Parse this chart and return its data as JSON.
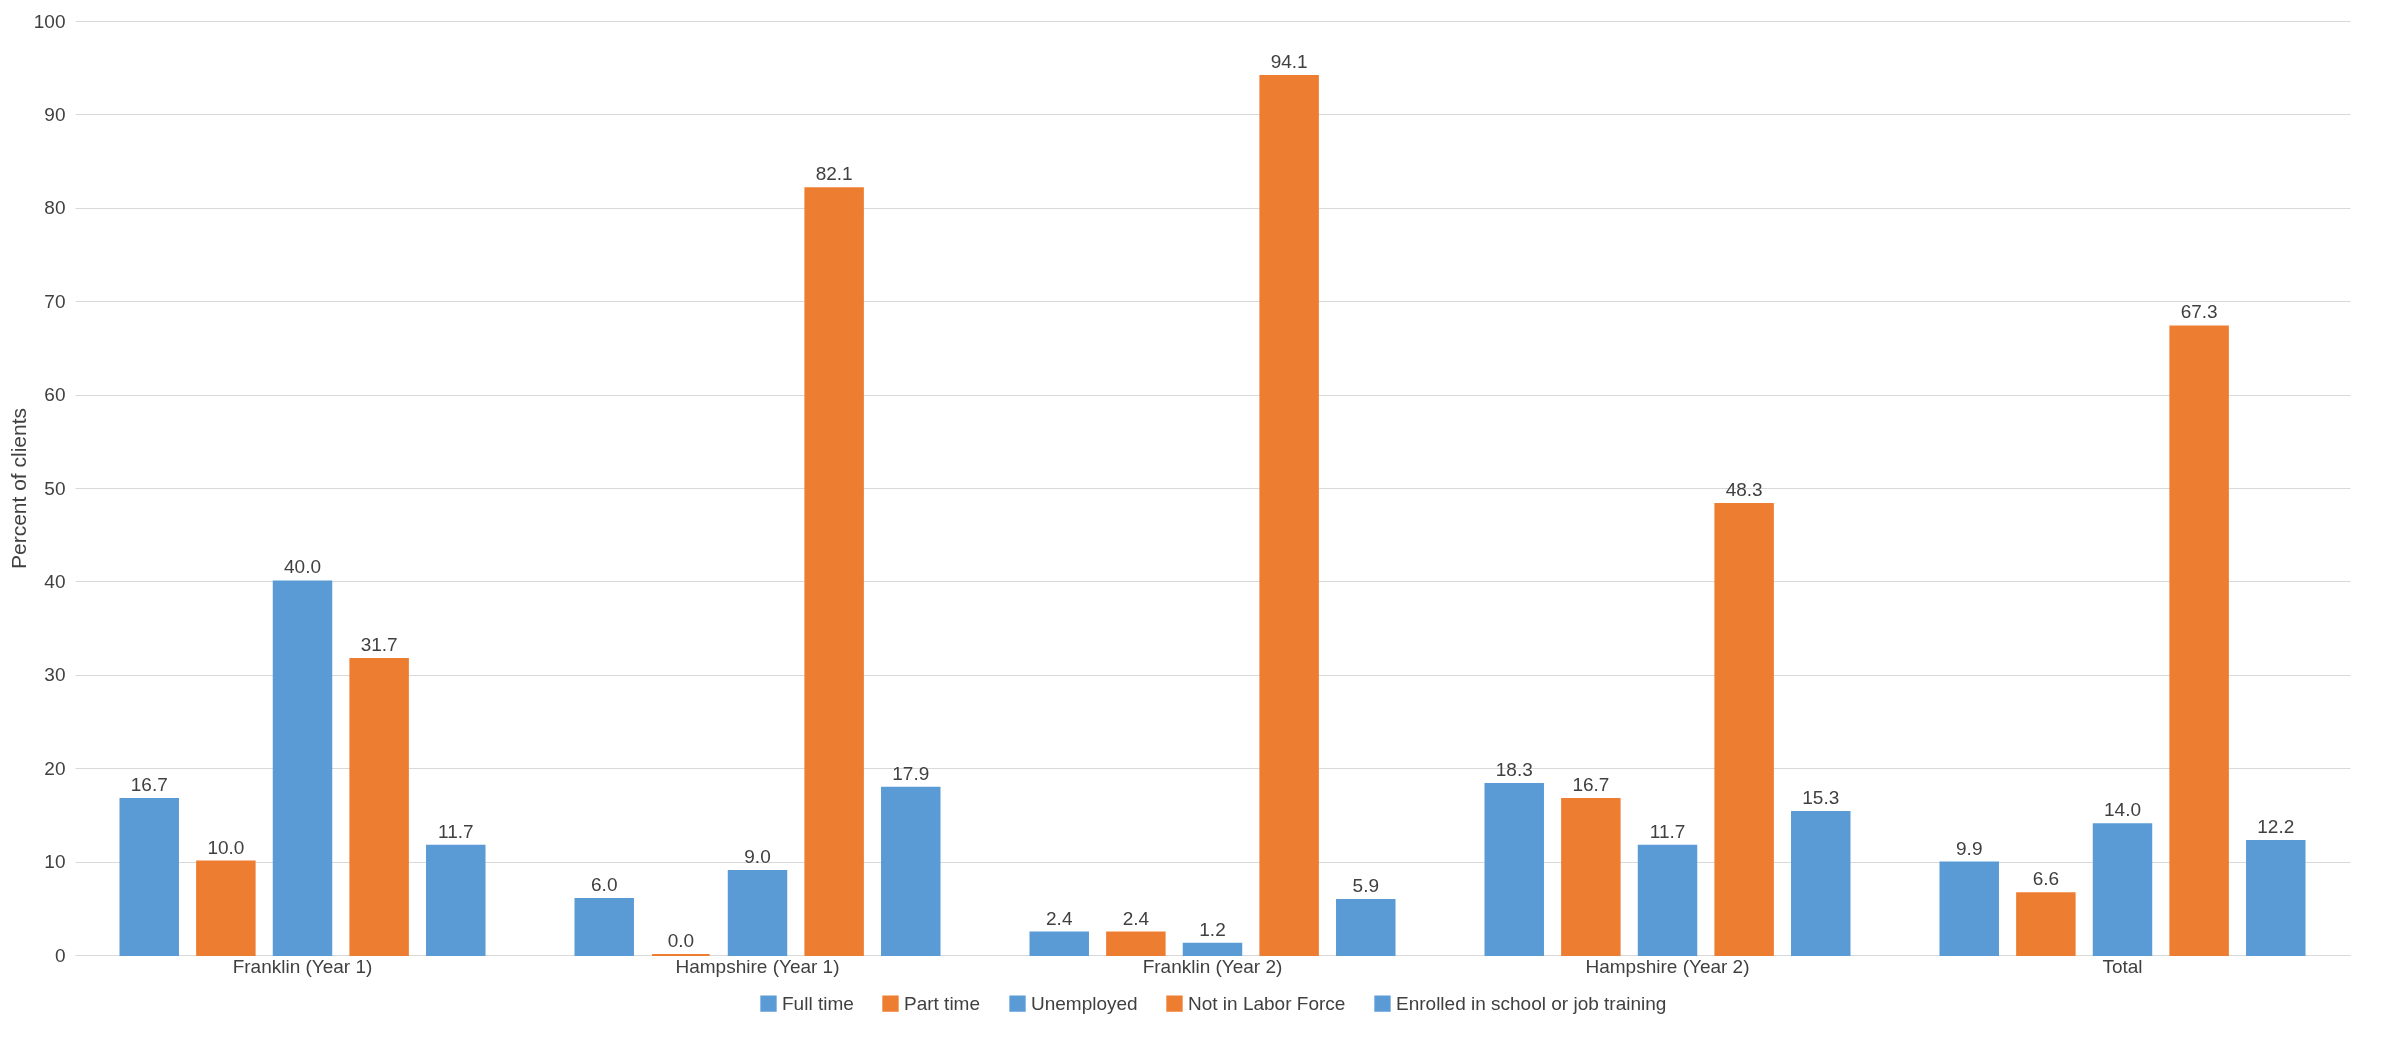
{
  "chart_data": {
    "type": "bar",
    "ylabel": "Percent of clients",
    "categories": [
      "Franklin (Year 1)",
      "Hampshire  (Year 1)",
      "Franklin (Year 2)",
      "Hampshire  (Year 2)",
      "Total"
    ],
    "series": [
      {
        "name": "Full time",
        "color": "#5b9bd5",
        "values": [
          16.7,
          6.0,
          2.4,
          18.3,
          9.9
        ],
        "value_labels": [
          "16.7",
          "6.0",
          "2.4",
          "18.3",
          "9.9"
        ]
      },
      {
        "name": "Part time",
        "color": "#ed7d31",
        "values": [
          10.0,
          0.0,
          2.4,
          16.7,
          6.6
        ],
        "value_labels": [
          "10.0",
          "0.0",
          "2.4",
          "16.7",
          "6.6"
        ]
      },
      {
        "name": "Unemployed",
        "color": "#5b9bd5",
        "values": [
          40.0,
          9.0,
          1.2,
          11.7,
          14.0
        ],
        "value_labels": [
          "40.0",
          "9.0",
          "1.2",
          "11.7",
          "14.0"
        ]
      },
      {
        "name": "Not in Labor Force",
        "color": "#ed7d31",
        "values": [
          31.7,
          82.1,
          94.1,
          48.3,
          67.3
        ],
        "value_labels": [
          "31.7",
          "82.1",
          "94.1",
          "48.3",
          "67.3"
        ]
      },
      {
        "name": "Enrolled in school or job training",
        "color": "#5b9bd5",
        "values": [
          11.7,
          17.9,
          5.9,
          15.3,
          12.2
        ],
        "value_labels": [
          "11.7",
          "17.9",
          "5.9",
          "15.3",
          "12.2"
        ]
      }
    ],
    "ylim": [
      0,
      100
    ],
    "yticks": [
      0,
      10,
      20,
      30,
      40,
      50,
      60,
      70,
      80,
      90,
      100
    ],
    "grid": "y",
    "legend": "bottom"
  }
}
